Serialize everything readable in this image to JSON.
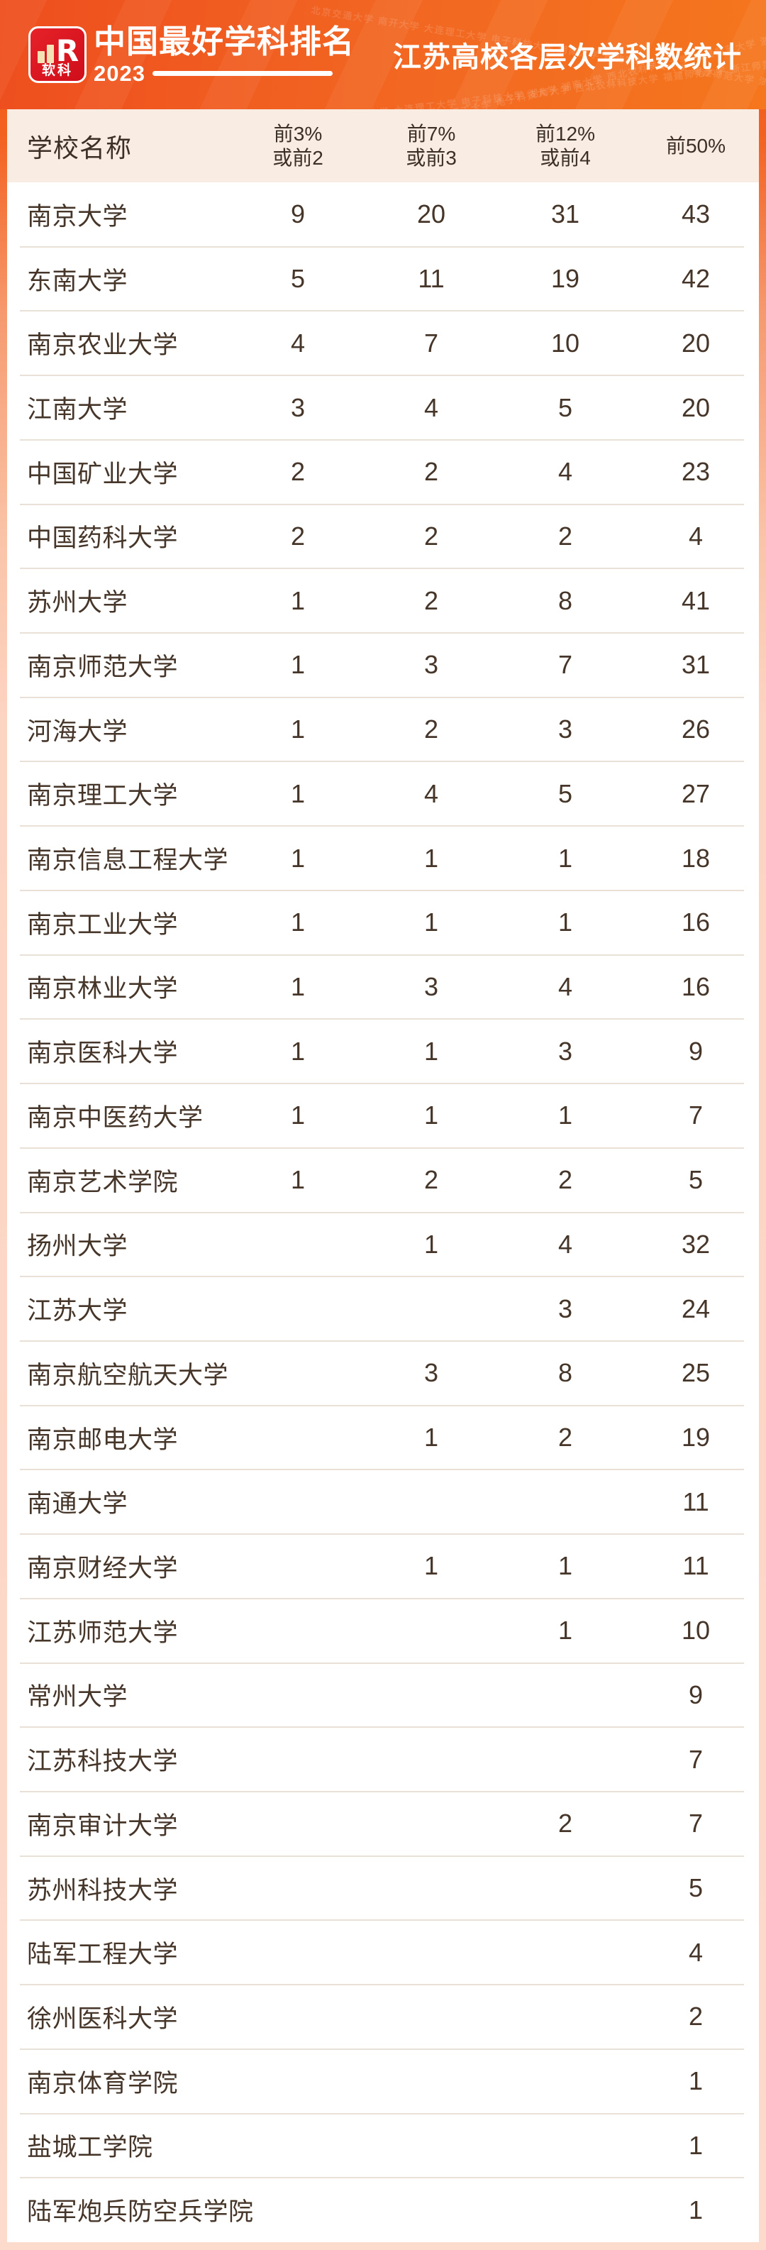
{
  "header": {
    "logo_brand": "软科",
    "logo_letter": "R",
    "ranking_title": "中国最好学科排名",
    "year": "2023",
    "page_title": "江苏高校各层次学科数统计",
    "watermark_text": "北京交通大学 南开大学 大连理工大学 电子科技大学 湖南大学 西北农林科技大学 福建师范大学 浙江师范大学 北京交通大学 南开大学 大连理工大学 电子科技大学 湖南大学 西北农林科技大学 福建师范大学 浙江师范大学"
  },
  "colors": {
    "band_orange": "#f26822",
    "logo_red": "#d8141f",
    "logo_bar_cream": "#f3e2b5",
    "table_header_bg": "#f8ece3",
    "text_brown": "#463529",
    "divider": "#e9e1d7",
    "page_bottom_peach": "#fcdacc"
  },
  "chart_data": {
    "type": "table",
    "title": "江苏高校各层次学科数统计",
    "source_brand": "软科 中国最好学科排名 2023",
    "columns": [
      {
        "key": "school",
        "label": "学校名称",
        "label_line1": "学校名称",
        "label_line2": ""
      },
      {
        "key": "top3",
        "label": "前3%或前2",
        "label_line1": "前3%",
        "label_line2": "或前2"
      },
      {
        "key": "top7",
        "label": "前7%或前3",
        "label_line1": "前7%",
        "label_line2": "或前3"
      },
      {
        "key": "top12",
        "label": "前12%或前4",
        "label_line1": "前12%",
        "label_line2": "或前4"
      },
      {
        "key": "top50",
        "label": "前50%",
        "label_line1": "前50%",
        "label_line2": ""
      }
    ],
    "rows": [
      {
        "school": "南京大学",
        "top3": 9,
        "top7": 20,
        "top12": 31,
        "top50": 43
      },
      {
        "school": "东南大学",
        "top3": 5,
        "top7": 11,
        "top12": 19,
        "top50": 42
      },
      {
        "school": "南京农业大学",
        "top3": 4,
        "top7": 7,
        "top12": 10,
        "top50": 20
      },
      {
        "school": "江南大学",
        "top3": 3,
        "top7": 4,
        "top12": 5,
        "top50": 20
      },
      {
        "school": "中国矿业大学",
        "top3": 2,
        "top7": 2,
        "top12": 4,
        "top50": 23
      },
      {
        "school": "中国药科大学",
        "top3": 2,
        "top7": 2,
        "top12": 2,
        "top50": 4
      },
      {
        "school": "苏州大学",
        "top3": 1,
        "top7": 2,
        "top12": 8,
        "top50": 41
      },
      {
        "school": "南京师范大学",
        "top3": 1,
        "top7": 3,
        "top12": 7,
        "top50": 31
      },
      {
        "school": "河海大学",
        "top3": 1,
        "top7": 2,
        "top12": 3,
        "top50": 26
      },
      {
        "school": "南京理工大学",
        "top3": 1,
        "top7": 4,
        "top12": 5,
        "top50": 27
      },
      {
        "school": "南京信息工程大学",
        "top3": 1,
        "top7": 1,
        "top12": 1,
        "top50": 18
      },
      {
        "school": "南京工业大学",
        "top3": 1,
        "top7": 1,
        "top12": 1,
        "top50": 16
      },
      {
        "school": "南京林业大学",
        "top3": 1,
        "top7": 3,
        "top12": 4,
        "top50": 16
      },
      {
        "school": "南京医科大学",
        "top3": 1,
        "top7": 1,
        "top12": 3,
        "top50": 9
      },
      {
        "school": "南京中医药大学",
        "top3": 1,
        "top7": 1,
        "top12": 1,
        "top50": 7
      },
      {
        "school": "南京艺术学院",
        "top3": 1,
        "top7": 2,
        "top12": 2,
        "top50": 5
      },
      {
        "school": "扬州大学",
        "top3": null,
        "top7": 1,
        "top12": 4,
        "top50": 32
      },
      {
        "school": "江苏大学",
        "top3": null,
        "top7": null,
        "top12": 3,
        "top50": 24
      },
      {
        "school": "南京航空航天大学",
        "top3": null,
        "top7": 3,
        "top12": 8,
        "top50": 25
      },
      {
        "school": "南京邮电大学",
        "top3": null,
        "top7": 1,
        "top12": 2,
        "top50": 19
      },
      {
        "school": "南通大学",
        "top3": null,
        "top7": null,
        "top12": null,
        "top50": 11
      },
      {
        "school": "南京财经大学",
        "top3": null,
        "top7": 1,
        "top12": 1,
        "top50": 11
      },
      {
        "school": "江苏师范大学",
        "top3": null,
        "top7": null,
        "top12": 1,
        "top50": 10
      },
      {
        "school": "常州大学",
        "top3": null,
        "top7": null,
        "top12": null,
        "top50": 9
      },
      {
        "school": "江苏科技大学",
        "top3": null,
        "top7": null,
        "top12": null,
        "top50": 7
      },
      {
        "school": "南京审计大学",
        "top3": null,
        "top7": null,
        "top12": 2,
        "top50": 7
      },
      {
        "school": "苏州科技大学",
        "top3": null,
        "top7": null,
        "top12": null,
        "top50": 5
      },
      {
        "school": "陆军工程大学",
        "top3": null,
        "top7": null,
        "top12": null,
        "top50": 4
      },
      {
        "school": "徐州医科大学",
        "top3": null,
        "top7": null,
        "top12": null,
        "top50": 2
      },
      {
        "school": "南京体育学院",
        "top3": null,
        "top7": null,
        "top12": null,
        "top50": 1
      },
      {
        "school": "盐城工学院",
        "top3": null,
        "top7": null,
        "top12": null,
        "top50": 1
      },
      {
        "school": "陆军炮兵防空兵学院",
        "top3": null,
        "top7": null,
        "top12": null,
        "top50": 1
      }
    ]
  }
}
